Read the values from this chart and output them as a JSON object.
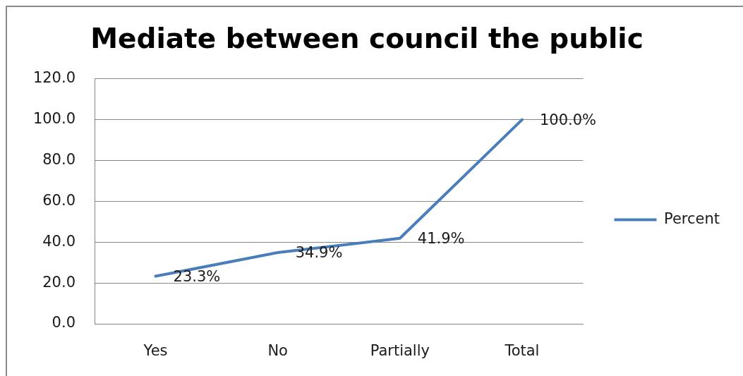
{
  "chart_data": {
    "type": "line",
    "title": "Mediate between council the public",
    "categories": [
      "Yes",
      "No",
      "Partially",
      "Total"
    ],
    "series": [
      {
        "name": "Percent",
        "color": "#4a7ebb",
        "values": [
          23.3,
          34.9,
          41.9,
          100.0
        ],
        "value_labels": [
          "23.3%",
          "34.9%",
          "41.9%",
          "100.0%"
        ]
      }
    ],
    "ylim": [
      0,
      120
    ],
    "yticks": [
      {
        "value": 0,
        "label": "0.0"
      },
      {
        "value": 20,
        "label": "20.0"
      },
      {
        "value": 40,
        "label": "40.0"
      },
      {
        "value": 60,
        "label": "60.0"
      },
      {
        "value": 80,
        "label": "80.0"
      },
      {
        "value": 100,
        "label": "100.0"
      },
      {
        "value": 120,
        "label": "120.0"
      }
    ],
    "grid": "y",
    "legend": "right",
    "marker": "none"
  }
}
